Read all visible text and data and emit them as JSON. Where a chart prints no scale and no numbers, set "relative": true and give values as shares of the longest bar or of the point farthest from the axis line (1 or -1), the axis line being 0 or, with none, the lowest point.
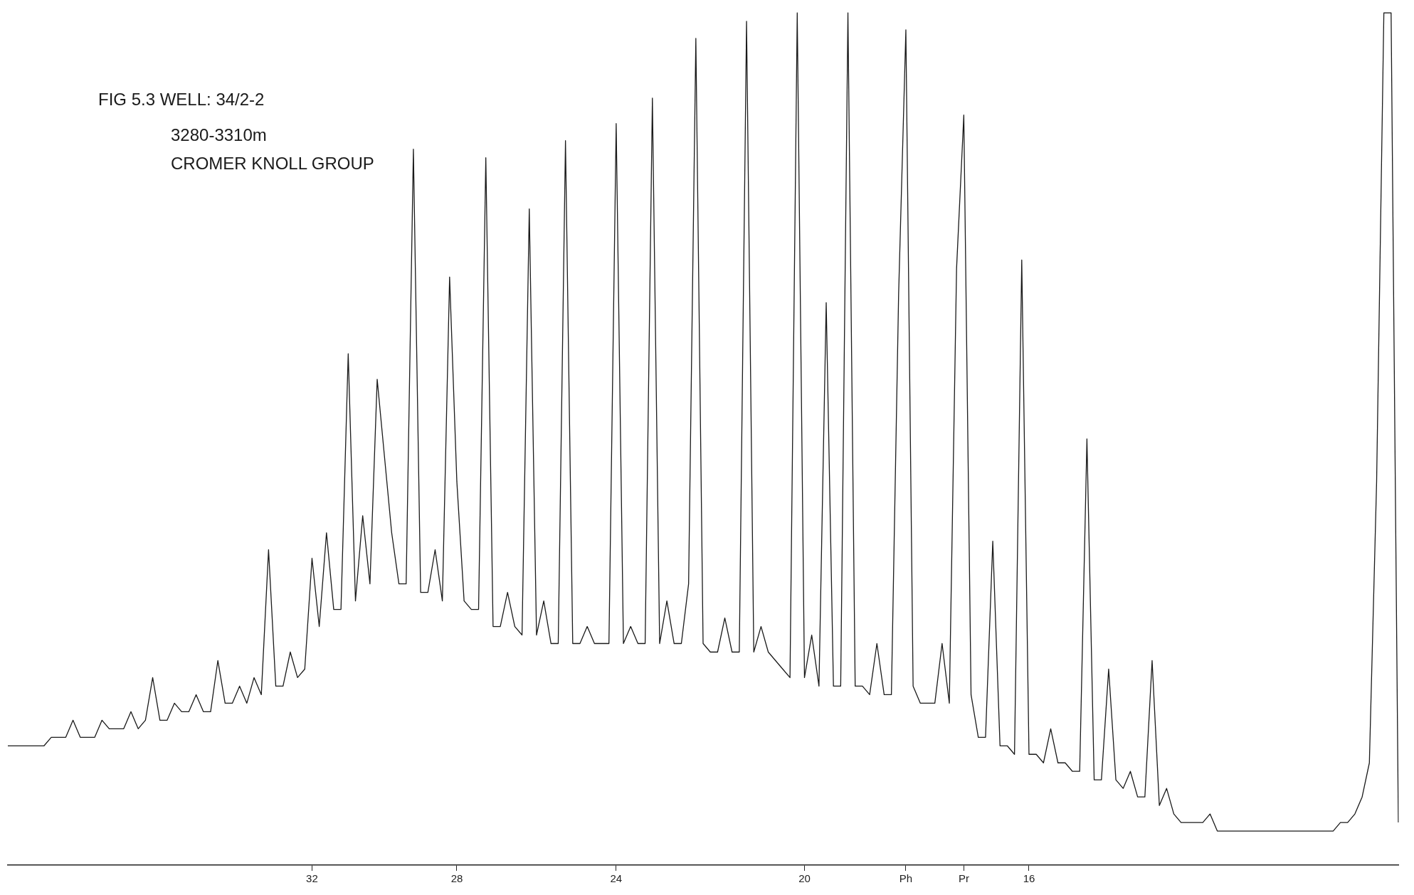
{
  "chart_data": {
    "type": "line",
    "title": "FIG 5.3 WELL: 34/2-2",
    "subtitle": "3280-3310m",
    "annotations": [
      "CROMER KNOLL GROUP"
    ],
    "relative": true,
    "grid": false,
    "legend": false,
    "marker": "none",
    "color": "#1a1a1a",
    "categories": [
      null,
      null,
      null,
      null,
      null,
      null,
      null,
      null,
      null,
      null,
      null,
      null,
      null,
      null,
      null,
      null,
      null,
      null,
      null,
      null,
      null,
      null,
      null,
      null,
      null,
      null,
      null,
      null,
      null,
      null,
      null,
      null,
      null,
      null,
      null,
      null,
      null,
      null,
      null,
      null,
      null,
      null,
      "32",
      null,
      null,
      null,
      null,
      null,
      null,
      null,
      null,
      null,
      null,
      null,
      null,
      null,
      null,
      null,
      null,
      null,
      null,
      null,
      "28",
      null,
      null,
      null,
      null,
      null,
      null,
      null,
      null,
      null,
      null,
      null,
      null,
      null,
      null,
      null,
      null,
      null,
      null,
      null,
      null,
      null,
      "24",
      null,
      null,
      null,
      null,
      null,
      null,
      null,
      null,
      null,
      null,
      null,
      null,
      null,
      null,
      null,
      null,
      null,
      null,
      null,
      null,
      null,
      null,
      null,
      null,
      null,
      "20",
      null,
      null,
      null,
      null,
      null,
      null,
      null,
      null,
      null,
      null,
      null,
      null,
      null,
      "Ph",
      null,
      null,
      null,
      null,
      null,
      null,
      null,
      "Pr",
      null,
      null,
      null,
      null,
      null,
      null,
      null,
      null,
      "16",
      null,
      null,
      null,
      null,
      null,
      null,
      null,
      null,
      null,
      null,
      null,
      null,
      null,
      null,
      null,
      null,
      null,
      null,
      null,
      null,
      null,
      null,
      null,
      null,
      null,
      null,
      null,
      null,
      null,
      null,
      null,
      null,
      null,
      null,
      null,
      null,
      null,
      null,
      null,
      null,
      null,
      null,
      null,
      null,
      null,
      null,
      null,
      null,
      null,
      null,
      null
    ],
    "values": [
      0.14,
      0.14,
      0.14,
      0.14,
      0.14,
      0.14,
      0.15,
      0.15,
      0.15,
      0.17,
      0.15,
      0.15,
      0.15,
      0.17,
      0.16,
      0.16,
      0.16,
      0.18,
      0.16,
      0.17,
      0.22,
      0.17,
      0.17,
      0.19,
      0.18,
      0.18,
      0.2,
      0.18,
      0.18,
      0.24,
      0.19,
      0.19,
      0.21,
      0.19,
      0.22,
      0.2,
      0.37,
      0.21,
      0.21,
      0.25,
      0.22,
      0.23,
      0.36,
      0.28,
      0.39,
      0.3,
      0.3,
      0.6,
      0.31,
      0.41,
      0.33,
      0.57,
      0.48,
      0.39,
      0.33,
      0.33,
      0.84,
      0.32,
      0.32,
      0.37,
      0.31,
      0.69,
      0.45,
      0.31,
      0.3,
      0.3,
      0.83,
      0.28,
      0.28,
      0.32,
      0.28,
      0.27,
      0.77,
      0.27,
      0.31,
      0.26,
      0.26,
      0.85,
      0.26,
      0.26,
      0.28,
      0.26,
      0.26,
      0.26,
      0.87,
      0.26,
      0.28,
      0.26,
      0.26,
      0.9,
      0.26,
      0.31,
      0.26,
      0.26,
      0.33,
      0.97,
      0.26,
      0.25,
      0.25,
      0.29,
      0.25,
      0.25,
      0.99,
      0.25,
      0.28,
      0.25,
      0.24,
      0.23,
      0.22,
      1,
      0.22,
      0.27,
      0.21,
      0.66,
      0.21,
      0.21,
      1,
      0.21,
      0.21,
      0.2,
      0.26,
      0.2,
      0.2,
      0.67,
      0.98,
      0.21,
      0.19,
      0.19,
      0.19,
      0.26,
      0.19,
      0.7,
      0.88,
      0.2,
      0.15,
      0.15,
      0.38,
      0.14,
      0.14,
      0.13,
      0.71,
      0.13,
      0.13,
      0.12,
      0.16,
      0.12,
      0.12,
      0.11,
      0.11,
      0.5,
      0.1,
      0.1,
      0.23,
      0.1,
      0.09,
      0.11,
      0.08,
      0.08,
      0.24,
      0.07,
      0.09,
      0.06,
      0.05,
      0.05,
      0.05,
      0.05,
      0.06,
      0.04,
      0.04,
      0.04,
      0.04,
      0.04,
      0.04,
      0.04,
      0.04,
      0.04,
      0.04,
      0.04,
      0.04,
      0.04,
      0.04,
      0.04,
      0.04,
      0.04,
      0.05,
      0.05,
      0.06,
      0.08,
      0.12,
      0.45,
      1,
      1,
      0.05
    ]
  }
}
